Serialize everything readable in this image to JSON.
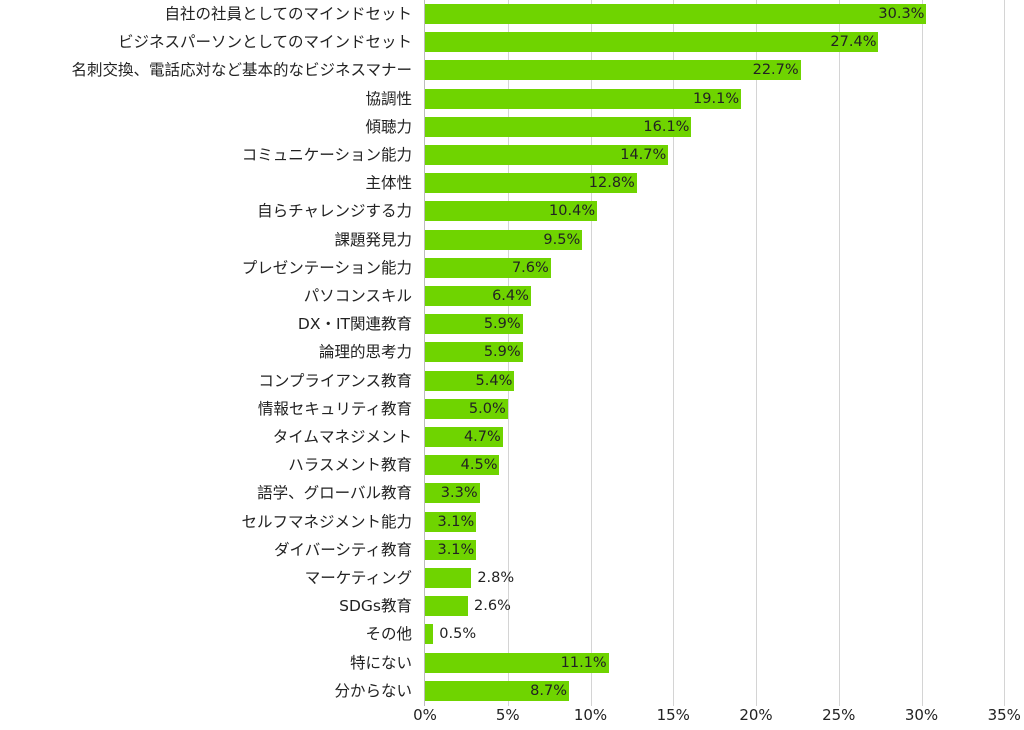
{
  "chart_data": {
    "type": "bar",
    "orientation": "horizontal",
    "title": "",
    "xlabel": "",
    "ylabel": "",
    "xlim": [
      0,
      35
    ],
    "grid": true,
    "legend": null,
    "bar_color": "#6fd400",
    "categories": [
      "自社の社員としてのマインドセット",
      "ビジネスパーソンとしてのマインドセット",
      "名刺交換、電話応対など基本的なビジネスマナー",
      "協調性",
      "傾聴力",
      "コミュニケーション能力",
      "主体性",
      "自らチャレンジする力",
      "課題発見力",
      "プレゼンテーション能力",
      "パソコンスキル",
      "DX・IT関連教育",
      "論理的思考力",
      "コンプライアンス教育",
      "情報セキュリティ教育",
      "タイムマネジメント",
      "ハラスメント教育",
      "語学、グローバル教育",
      "セルフマネジメント能力",
      "ダイバーシティ教育",
      "マーケティング",
      "SDGs教育",
      "その他",
      "特にない",
      "分からない"
    ],
    "values": [
      30.3,
      27.4,
      22.7,
      19.1,
      16.1,
      14.7,
      12.8,
      10.4,
      9.5,
      7.6,
      6.4,
      5.9,
      5.9,
      5.4,
      5.0,
      4.7,
      4.5,
      3.3,
      3.1,
      3.1,
      2.8,
      2.6,
      0.5,
      11.1,
      8.7
    ],
    "value_labels": [
      "30.3%",
      "27.4%",
      "22.7%",
      "19.1%",
      "16.1%",
      "14.7%",
      "12.8%",
      "10.4%",
      "9.5%",
      "7.6%",
      "6.4%",
      "5.9%",
      "5.9%",
      "5.4%",
      "5.0%",
      "4.7%",
      "4.5%",
      "3.3%",
      "3.1%",
      "3.1%",
      "2.8%",
      "2.6%",
      "0.5%",
      "11.1%",
      "8.7%"
    ],
    "label_inside": [
      true,
      true,
      true,
      true,
      true,
      true,
      true,
      true,
      true,
      true,
      true,
      true,
      true,
      true,
      true,
      true,
      true,
      true,
      true,
      true,
      false,
      false,
      false,
      true,
      true
    ],
    "x_ticks": [
      0,
      5,
      10,
      15,
      20,
      25,
      30,
      35
    ],
    "x_tick_labels": [
      "0%",
      "5%",
      "10%",
      "15%",
      "20%",
      "25%",
      "30%",
      "35%"
    ]
  }
}
